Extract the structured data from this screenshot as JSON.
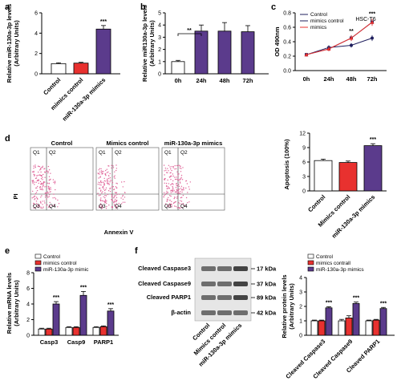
{
  "colors": {
    "control": "#ffffff",
    "mimics_control": "#e8312f",
    "mimic": "#5b3b8c",
    "axis": "#000000",
    "flow_dot": "#e0669a",
    "blot_band": "#3a3a3a",
    "blot_bg": "#d6d6d6",
    "line_control": "#1f1f5e",
    "line_mimic": "#e8312f"
  },
  "panel_labels": {
    "a": "a",
    "b": "b",
    "c": "c",
    "d": "d",
    "e": "e",
    "f": "f"
  },
  "panel_a": {
    "ylabel": "Relative miR-130a-3p levels\n(Arbitrary Units)",
    "yticks": [
      "0",
      "2",
      "4",
      "6"
    ],
    "sig": "***"
  },
  "panel_b": {
    "ylabel": "Relative miR130a-3p levels\n(Arbitrary Units)",
    "yticks": [
      "0",
      "1",
      "2",
      "3",
      "4",
      "5"
    ],
    "sig": "**"
  },
  "panel_c": {
    "ylabel": "OD 490nm",
    "title": "HSC-T6",
    "yticks": [
      "0.0",
      "0.2",
      "0.4",
      "0.6",
      "0.8"
    ],
    "xticks": [
      "0h",
      "24h",
      "48h",
      "72h"
    ],
    "legend": [
      "Control",
      "mimics control",
      "mimics"
    ],
    "sig_48": "**",
    "sig_72": "***"
  },
  "panel_d_flow": {
    "titles": [
      "Control",
      "Mimics control",
      "miR-130a-3p mimics"
    ],
    "ylabel": "PI",
    "xlabel": "Annexin V",
    "q_labels": [
      "Q1",
      "Q2",
      "Q3",
      "Q4"
    ]
  },
  "panel_d_bar": {
    "ylabel": "Apoptosis (100%)",
    "yticks": [
      "0",
      "3",
      "6",
      "9",
      "12"
    ],
    "sig": "***"
  },
  "panel_e": {
    "ylabel": "Relative mRNA levels\n(Arbitrary Units)",
    "yticks": [
      "0",
      "2",
      "4",
      "6",
      "8"
    ],
    "legend": [
      "Control",
      "mimics control",
      "miR-130a-3p mimic"
    ],
    "sigs": [
      "***",
      "***",
      "***"
    ]
  },
  "panel_f_blot": {
    "rows": [
      "Cleaved Caspase3",
      "Cleaved Caspase9",
      "Cleaved PARP1",
      "β-actin"
    ],
    "kda": [
      "17 kDa",
      "37 kDa",
      "89 kDa",
      "42 kDa"
    ],
    "lanes": [
      "Control",
      "Mimics control",
      "miR-130a-3p mimics"
    ]
  },
  "panel_f_bar": {
    "ylabel": "Relative protein levels\n(Arbitrary Units)",
    "yticks": [
      "0",
      "1",
      "2",
      "3",
      "4"
    ],
    "legend": [
      "Control",
      "mimics contrall",
      "miR-130a-3p mimics"
    ],
    "sigs": [
      "***",
      "***",
      "***"
    ]
  },
  "chart_data": [
    {
      "type": "bar",
      "panel": "a",
      "categories": [
        "Control",
        "mimics control",
        "miR-130a-3p mimics"
      ],
      "values": [
        1.0,
        1.05,
        4.4
      ],
      "errors": [
        0.08,
        0.08,
        0.35
      ],
      "ylim": [
        0,
        6
      ]
    },
    {
      "type": "bar",
      "panel": "b",
      "categories": [
        "0h",
        "24h",
        "48h",
        "72h"
      ],
      "values": [
        1.0,
        3.5,
        3.5,
        3.45
      ],
      "errors": [
        0.1,
        0.5,
        0.7,
        0.5
      ],
      "ylim": [
        0,
        5
      ]
    },
    {
      "type": "line",
      "panel": "c",
      "x": [
        "0h",
        "24h",
        "48h",
        "72h"
      ],
      "series": [
        {
          "name": "Control",
          "values": [
            0.22,
            0.32,
            0.35,
            0.45
          ],
          "errors": [
            0.02,
            0.03,
            0.03,
            0.04
          ]
        },
        {
          "name": "mimics control",
          "values": [
            0.22,
            0.3,
            0.45,
            0.67
          ],
          "errors": [
            0.02,
            0.03,
            0.04,
            0.04
          ]
        },
        {
          "name": "mimics",
          "values": [
            0.22,
            0.3,
            0.45,
            0.67
          ],
          "errors": [
            0.02,
            0.03,
            0.04,
            0.05
          ]
        }
      ],
      "ylim": [
        0,
        0.8
      ]
    },
    {
      "type": "bar",
      "panel": "d",
      "categories": [
        "Control",
        "Mimics control",
        "miR-130a-3p mimics"
      ],
      "values": [
        6.3,
        5.9,
        9.4
      ],
      "errors": [
        0.3,
        0.3,
        0.4
      ],
      "ylim": [
        0,
        12
      ]
    },
    {
      "type": "bar",
      "panel": "e",
      "categories": [
        "Casp3",
        "Casp9",
        "PARP1"
      ],
      "series": [
        {
          "name": "Control",
          "values": [
            0.8,
            1.0,
            1.0
          ],
          "errors": [
            0.1,
            0.1,
            0.1
          ]
        },
        {
          "name": "mimics control",
          "values": [
            0.8,
            1.0,
            1.1
          ],
          "errors": [
            0.1,
            0.1,
            0.1
          ]
        },
        {
          "name": "miR-130a-3p mimic",
          "values": [
            4.0,
            5.1,
            3.1
          ],
          "errors": [
            0.3,
            0.5,
            0.3
          ]
        }
      ],
      "ylim": [
        0,
        8
      ]
    },
    {
      "type": "bar",
      "panel": "f",
      "categories": [
        "Cleaved Caspase3",
        "Cleaved Caspase9",
        "Cleaved PARP1"
      ],
      "series": [
        {
          "name": "Control",
          "values": [
            1.0,
            1.0,
            1.0
          ],
          "errors": [
            0.05,
            0.1,
            0.05
          ]
        },
        {
          "name": "mimics contrall",
          "values": [
            1.0,
            1.2,
            1.05
          ],
          "errors": [
            0.05,
            0.15,
            0.05
          ]
        },
        {
          "name": "miR-130a-3p mimics",
          "values": [
            1.9,
            2.2,
            1.85
          ],
          "errors": [
            0.08,
            0.1,
            0.08
          ]
        }
      ],
      "ylim": [
        0,
        4
      ]
    }
  ]
}
